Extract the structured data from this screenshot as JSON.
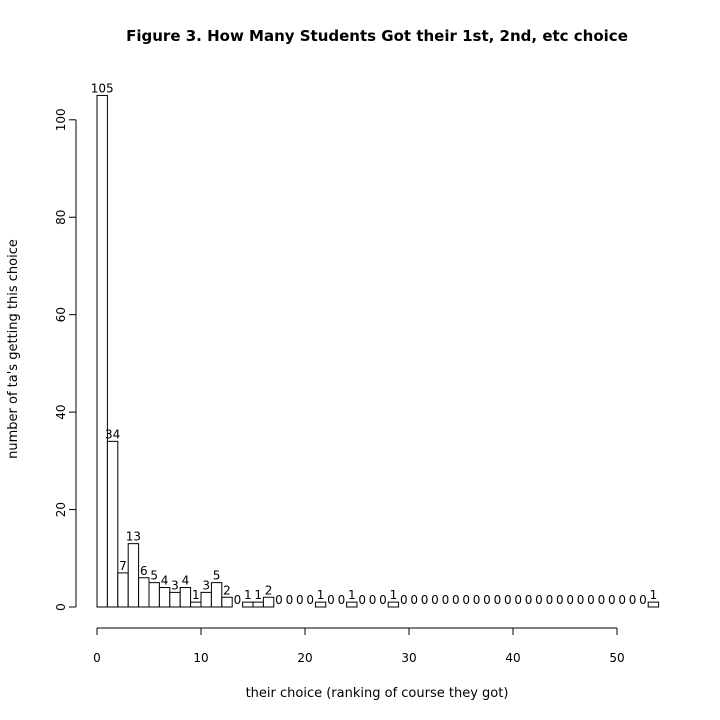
{
  "chart_data": {
    "type": "bar",
    "title": "Figure 3. How Many Students Got their 1st, 2nd, etc choice",
    "xlabel": "their choice (ranking of course they got)",
    "ylabel": "number of ta's getting this choice",
    "xlim": [
      0,
      54
    ],
    "ylim": [
      0,
      105
    ],
    "x_ticks": [
      0,
      10,
      20,
      30,
      40,
      50
    ],
    "y_ticks": [
      0,
      20,
      40,
      60,
      80,
      100
    ],
    "bin_width": 1,
    "bin_start": 0,
    "values": [
      105,
      34,
      7,
      13,
      6,
      5,
      4,
      3,
      4,
      1,
      3,
      5,
      2,
      0,
      1,
      1,
      2,
      0,
      0,
      0,
      0,
      1,
      0,
      0,
      1,
      0,
      0,
      0,
      1,
      0,
      0,
      0,
      0,
      0,
      0,
      0,
      0,
      0,
      0,
      0,
      0,
      0,
      0,
      0,
      0,
      0,
      0,
      0,
      0,
      0,
      0,
      0,
      0,
      1
    ],
    "labels": [
      "105",
      "34",
      "7",
      "13",
      "6",
      "5",
      "4",
      "3",
      "4",
      "1",
      "3",
      "5",
      "2",
      "0",
      "1",
      "1",
      "2",
      "0",
      "0",
      "0",
      "0",
      "1",
      "0",
      "0",
      "1",
      "0",
      "0",
      "0",
      "1",
      "0",
      "0",
      "0",
      "0",
      "0",
      "0",
      "0",
      "0",
      "0",
      "0",
      "0",
      "0",
      "0",
      "0",
      "0",
      "0",
      "0",
      "0",
      "0",
      "0",
      "0",
      "0",
      "0",
      "0",
      "1"
    ],
    "grid": false,
    "legend": "none"
  }
}
